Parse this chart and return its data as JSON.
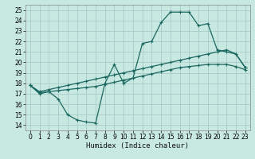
{
  "xlabel": "Humidex (Indice chaleur)",
  "bg_color": "#c8e8e2",
  "grid_color": "#a8ccc8",
  "line_color": "#1a6860",
  "xlim": [
    -0.5,
    23.5
  ],
  "ylim": [
    13.5,
    25.5
  ],
  "xticks": [
    0,
    1,
    2,
    3,
    4,
    5,
    6,
    7,
    8,
    9,
    10,
    11,
    12,
    13,
    14,
    15,
    16,
    17,
    18,
    19,
    20,
    21,
    22,
    23
  ],
  "yticks": [
    14,
    15,
    16,
    17,
    18,
    19,
    20,
    21,
    22,
    23,
    24,
    25
  ],
  "curve1_x": [
    0,
    1,
    2,
    3,
    4,
    5,
    6,
    7,
    8,
    9,
    10,
    11,
    12,
    13,
    14,
    15,
    16,
    17,
    18,
    19,
    20,
    21,
    22,
    23
  ],
  "curve1_y": [
    17.8,
    17.0,
    17.2,
    16.5,
    15.0,
    14.5,
    14.3,
    14.2,
    18.0,
    19.8,
    18.0,
    18.5,
    21.8,
    22.0,
    23.8,
    24.8,
    24.8,
    24.8,
    23.5,
    23.7,
    21.2,
    21.0,
    20.8,
    19.5
  ],
  "curve2_x": [
    0,
    1,
    2,
    3,
    4,
    5,
    6,
    7,
    8,
    9,
    10,
    11,
    12,
    13,
    14,
    15,
    16,
    17,
    18,
    19,
    20,
    21,
    22,
    23
  ],
  "curve2_y": [
    17.8,
    17.2,
    17.4,
    17.6,
    17.8,
    18.0,
    18.2,
    18.4,
    18.6,
    18.8,
    19.0,
    19.2,
    19.4,
    19.6,
    19.8,
    20.0,
    20.2,
    20.4,
    20.6,
    20.8,
    21.0,
    21.2,
    20.8,
    19.5
  ],
  "curve3_x": [
    0,
    1,
    2,
    3,
    4,
    5,
    6,
    7,
    8,
    9,
    10,
    11,
    12,
    13,
    14,
    15,
    16,
    17,
    18,
    19,
    20,
    21,
    22,
    23
  ],
  "curve3_y": [
    17.8,
    17.1,
    17.2,
    17.3,
    17.4,
    17.5,
    17.6,
    17.7,
    17.9,
    18.1,
    18.3,
    18.5,
    18.7,
    18.9,
    19.1,
    19.3,
    19.5,
    19.6,
    19.7,
    19.8,
    19.8,
    19.8,
    19.6,
    19.3
  ]
}
